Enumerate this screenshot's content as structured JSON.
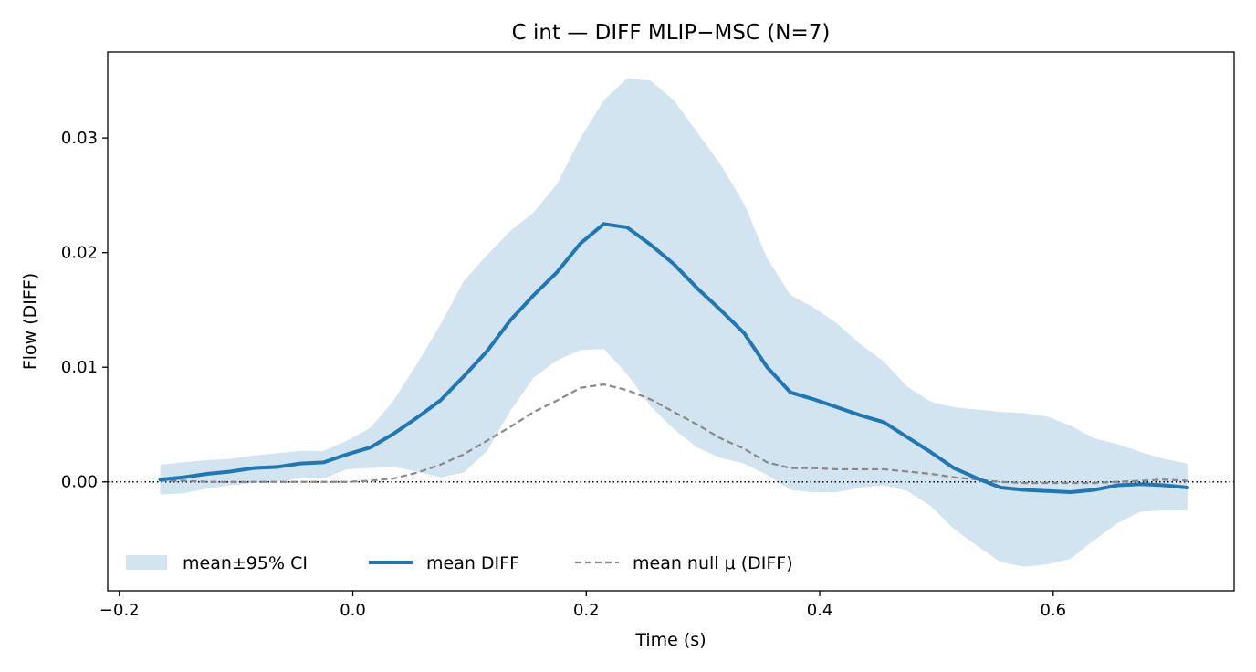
{
  "chart_data": {
    "type": "line",
    "title": "C int — DIFF MLIP−MSC (N=7)",
    "xlabel": "Time (s)",
    "ylabel": "Flow (DIFF)",
    "xlim": [
      -0.21,
      0.755
    ],
    "ylim": [
      -0.0095,
      0.0375
    ],
    "x_ticks": [
      -0.2,
      0.0,
      0.2,
      0.4,
      0.6
    ],
    "x_tick_labels": [
      "−0.2",
      "0.0",
      "0.2",
      "0.4",
      "0.6"
    ],
    "y_ticks": [
      0.0,
      0.01,
      0.02,
      0.03
    ],
    "y_tick_labels": [
      "0.00",
      "0.01",
      "0.02",
      "0.03"
    ],
    "grid": false,
    "legend_position": "lower-left",
    "x": [
      -0.165,
      -0.145,
      -0.125,
      -0.105,
      -0.085,
      -0.065,
      -0.045,
      -0.025,
      -0.005,
      0.015,
      0.035,
      0.055,
      0.075,
      0.095,
      0.115,
      0.135,
      0.155,
      0.175,
      0.195,
      0.215,
      0.235,
      0.255,
      0.275,
      0.295,
      0.315,
      0.335,
      0.355,
      0.375,
      0.395,
      0.415,
      0.435,
      0.455,
      0.475,
      0.495,
      0.515,
      0.535,
      0.555,
      0.575,
      0.595,
      0.615,
      0.635,
      0.655,
      0.675,
      0.695,
      0.715
    ],
    "series": [
      {
        "name": "mean DIFF",
        "color": "#1f77b4",
        "style": "solid",
        "values": [
          0.0002,
          0.0004,
          0.0007,
          0.0009,
          0.0012,
          0.0013,
          0.0016,
          0.0017,
          0.0024,
          0.003,
          0.0042,
          0.0056,
          0.0071,
          0.0092,
          0.0114,
          0.0141,
          0.0163,
          0.0183,
          0.0208,
          0.0225,
          0.0222,
          0.0207,
          0.019,
          0.0169,
          0.015,
          0.013,
          0.01,
          0.0078,
          0.0072,
          0.0065,
          0.0058,
          0.0052,
          0.0039,
          0.0026,
          0.0012,
          0.0003,
          -0.0005,
          -0.0007,
          -0.0008,
          -0.0009,
          -0.0007,
          -0.0003,
          -0.0002,
          -0.0003,
          -0.0005
        ]
      },
      {
        "name": "mean null μ (DIFF)",
        "color": "#888888",
        "style": "dashed",
        "values": [
          0.0001,
          0.0001,
          0.0,
          0.0,
          0.0,
          0.0,
          0.0,
          0.0,
          0.0,
          0.0001,
          0.0003,
          0.0008,
          0.0015,
          0.0024,
          0.0036,
          0.0048,
          0.0061,
          0.0071,
          0.0082,
          0.0085,
          0.008,
          0.0072,
          0.0061,
          0.005,
          0.0038,
          0.0029,
          0.0017,
          0.0012,
          0.0012,
          0.0011,
          0.0011,
          0.0011,
          0.0009,
          0.0007,
          0.0004,
          0.0002,
          0.0,
          -0.0001,
          -0.0001,
          -0.0001,
          -0.0001,
          0.0,
          0.0001,
          0.0002,
          0.0001
        ]
      }
    ],
    "band": {
      "name": "mean±95% CI",
      "color": "#1f77b4",
      "opacity": 0.2,
      "upper": [
        0.0015,
        0.0017,
        0.0019,
        0.002,
        0.0023,
        0.0025,
        0.0027,
        0.0027,
        0.0036,
        0.0047,
        0.0071,
        0.0103,
        0.0137,
        0.0175,
        0.0198,
        0.0219,
        0.0235,
        0.026,
        0.03,
        0.0333,
        0.0352,
        0.035,
        0.0333,
        0.0305,
        0.0277,
        0.0243,
        0.0195,
        0.0163,
        0.0152,
        0.0138,
        0.012,
        0.0105,
        0.0083,
        0.007,
        0.0065,
        0.0063,
        0.0061,
        0.006,
        0.0057,
        0.0049,
        0.0038,
        0.0033,
        0.0026,
        0.002,
        0.0016
      ],
      "lower": [
        -0.0011,
        -0.001,
        -0.0006,
        -0.0003,
        -0.0001,
        0.0,
        0.0003,
        0.0003,
        0.0011,
        0.0012,
        0.0013,
        0.0009,
        0.0004,
        0.0008,
        0.0027,
        0.0062,
        0.0091,
        0.0106,
        0.0115,
        0.0116,
        0.0094,
        0.0066,
        0.0046,
        0.003,
        0.0021,
        0.0016,
        0.0006,
        -0.0007,
        -0.0009,
        -0.0009,
        -0.0005,
        -0.0003,
        -0.0008,
        -0.0021,
        -0.0041,
        -0.0056,
        -0.007,
        -0.0074,
        -0.0072,
        -0.0067,
        -0.0051,
        -0.0036,
        -0.0026,
        -0.0025,
        -0.0025
      ]
    },
    "reference_line": {
      "y": 0.0,
      "style": "dotted",
      "color": "#000000"
    },
    "legend": [
      {
        "label": "mean±95% CI",
        "kind": "band"
      },
      {
        "label": "mean DIFF",
        "kind": "solid"
      },
      {
        "label": "mean null μ (DIFF)",
        "kind": "dashed"
      }
    ]
  }
}
